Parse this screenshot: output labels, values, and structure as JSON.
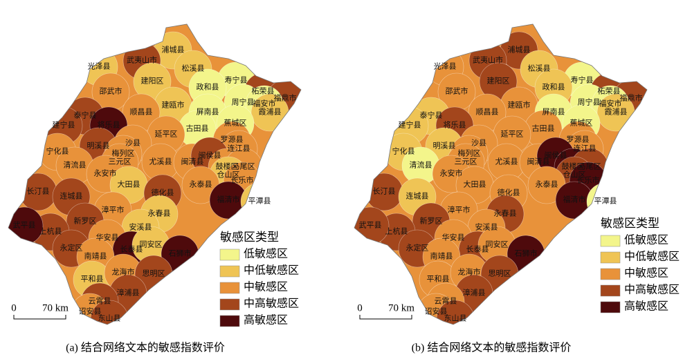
{
  "legend": {
    "title": "敏感区类型",
    "classes": [
      {
        "label": "低敏感区",
        "color": "#f3f58b"
      },
      {
        "label": "中低敏感区",
        "color": "#efc455"
      },
      {
        "label": "中敏感区",
        "color": "#e8923a"
      },
      {
        "label": "中高敏感区",
        "color": "#a3461c"
      },
      {
        "label": "高敏感区",
        "color": "#4e0a0c"
      }
    ]
  },
  "scale_bar": {
    "zero": "0",
    "distance": "70 km"
  },
  "counties": [
    "浦城县",
    "光泽县",
    "武夷山市",
    "松溪县",
    "建阳区",
    "寿宁县",
    "柘荣县",
    "邵武市",
    "政和县",
    "福鼎市",
    "建瓯市",
    "周宁县",
    "福安市",
    "泰宁县",
    "顺昌县",
    "屏南县",
    "霞浦县",
    "将乐县",
    "古田县",
    "蕉城区",
    "建宁县",
    "延平区",
    "沙县",
    "罗源县",
    "明溪县",
    "连江县",
    "宁化县",
    "梅列区",
    "三元区",
    "尤溪县",
    "闽清县",
    "闽侯县",
    "清流县",
    "鼓楼区",
    "马尾区",
    "永安市",
    "仓山区",
    "大田县",
    "长乐市",
    "永泰县",
    "德化县",
    "长汀县",
    "连城县",
    "福清市",
    "平潭县",
    "漳平市",
    "永春县",
    "新罗区",
    "安溪县",
    "上杭县",
    "武平县",
    "永定区",
    "华安县",
    "长泰县",
    "南靖县",
    "同安区",
    "石狮市",
    "平和县",
    "龙海市",
    "思明区",
    "漳浦县",
    "云霄县",
    "诏安县",
    "东山县"
  ],
  "panels": [
    {
      "caption": "(a) 结合网络文本的敏感指数评价",
      "county_colors": [
        "#efc455",
        "#efc455",
        "#a3461c",
        "#efc455",
        "#efc455",
        "#f3f58b",
        "#a3461c",
        "#e8923a",
        "#f3f58b",
        "#a3461c",
        "#efc455",
        "#f3f58b",
        "#f3f58b",
        "#a3461c",
        "#e8923a",
        "#f3f58b",
        "#efc455",
        "#4e0a0c",
        "#f3f58b",
        "#f3f58b",
        "#a3461c",
        "#e8923a",
        "#e8923a",
        "#e8923a",
        "#a3461c",
        "#e8923a",
        "#e8923a",
        "#e8923a",
        "#e8923a",
        "#e8923a",
        "#e8923a",
        "#a3461c",
        "#e8923a",
        "#e8923a",
        "#e8923a",
        "#e8923a",
        "#efc455",
        "#efc455",
        "#e8923a",
        "#e8923a",
        "#a3461c",
        "#a3461c",
        "#a3461c",
        "#4e0a0c",
        "#efc455",
        "#e8923a",
        "#efc455",
        "#a3461c",
        "#efc455",
        "#a3461c",
        "#4e0a0c",
        "#a3461c",
        "#e8923a",
        "#4e0a0c",
        "#e8923a",
        "#efc455",
        "#4e0a0c",
        "#efc455",
        "#e8923a",
        "#a3461c",
        "#a3461c",
        "#a3461c",
        "#e8923a",
        "#a3461c"
      ]
    },
    {
      "caption": "(b) 结合网络文本的敏感指数评价",
      "county_colors": [
        "#a3461c",
        "#e8923a",
        "#a3461c",
        "#efc455",
        "#a3461c",
        "#f3f58b",
        "#a3461c",
        "#e8923a",
        "#efc455",
        "#a3461c",
        "#e8923a",
        "#f3f58b",
        "#f3f58b",
        "#efc455",
        "#e8923a",
        "#f3f58b",
        "#efc455",
        "#a3461c",
        "#e8923a",
        "#f3f58b",
        "#efc455",
        "#e8923a",
        "#e8923a",
        "#e8923a",
        "#efc455",
        "#e8923a",
        "#efc455",
        "#e8923a",
        "#e8923a",
        "#e8923a",
        "#e8923a",
        "#4e0a0c",
        "#f3f58b",
        "#4e0a0c",
        "#a3461c",
        "#e8923a",
        "#a3461c",
        "#e8923a",
        "#4e0a0c",
        "#e8923a",
        "#e8923a",
        "#a3461c",
        "#efc455",
        "#4e0a0c",
        "#f3f58b",
        "#e8923a",
        "#a3461c",
        "#a3461c",
        "#e8923a",
        "#a3461c",
        "#a3461c",
        "#a3461c",
        "#e8923a",
        "#a3461c",
        "#e8923a",
        "#e8923a",
        "#4e0a0c",
        "#e8923a",
        "#e8923a",
        "#a3461c",
        "#a3461c",
        "#e8923a",
        "#e8923a",
        "#a3461c"
      ]
    }
  ]
}
